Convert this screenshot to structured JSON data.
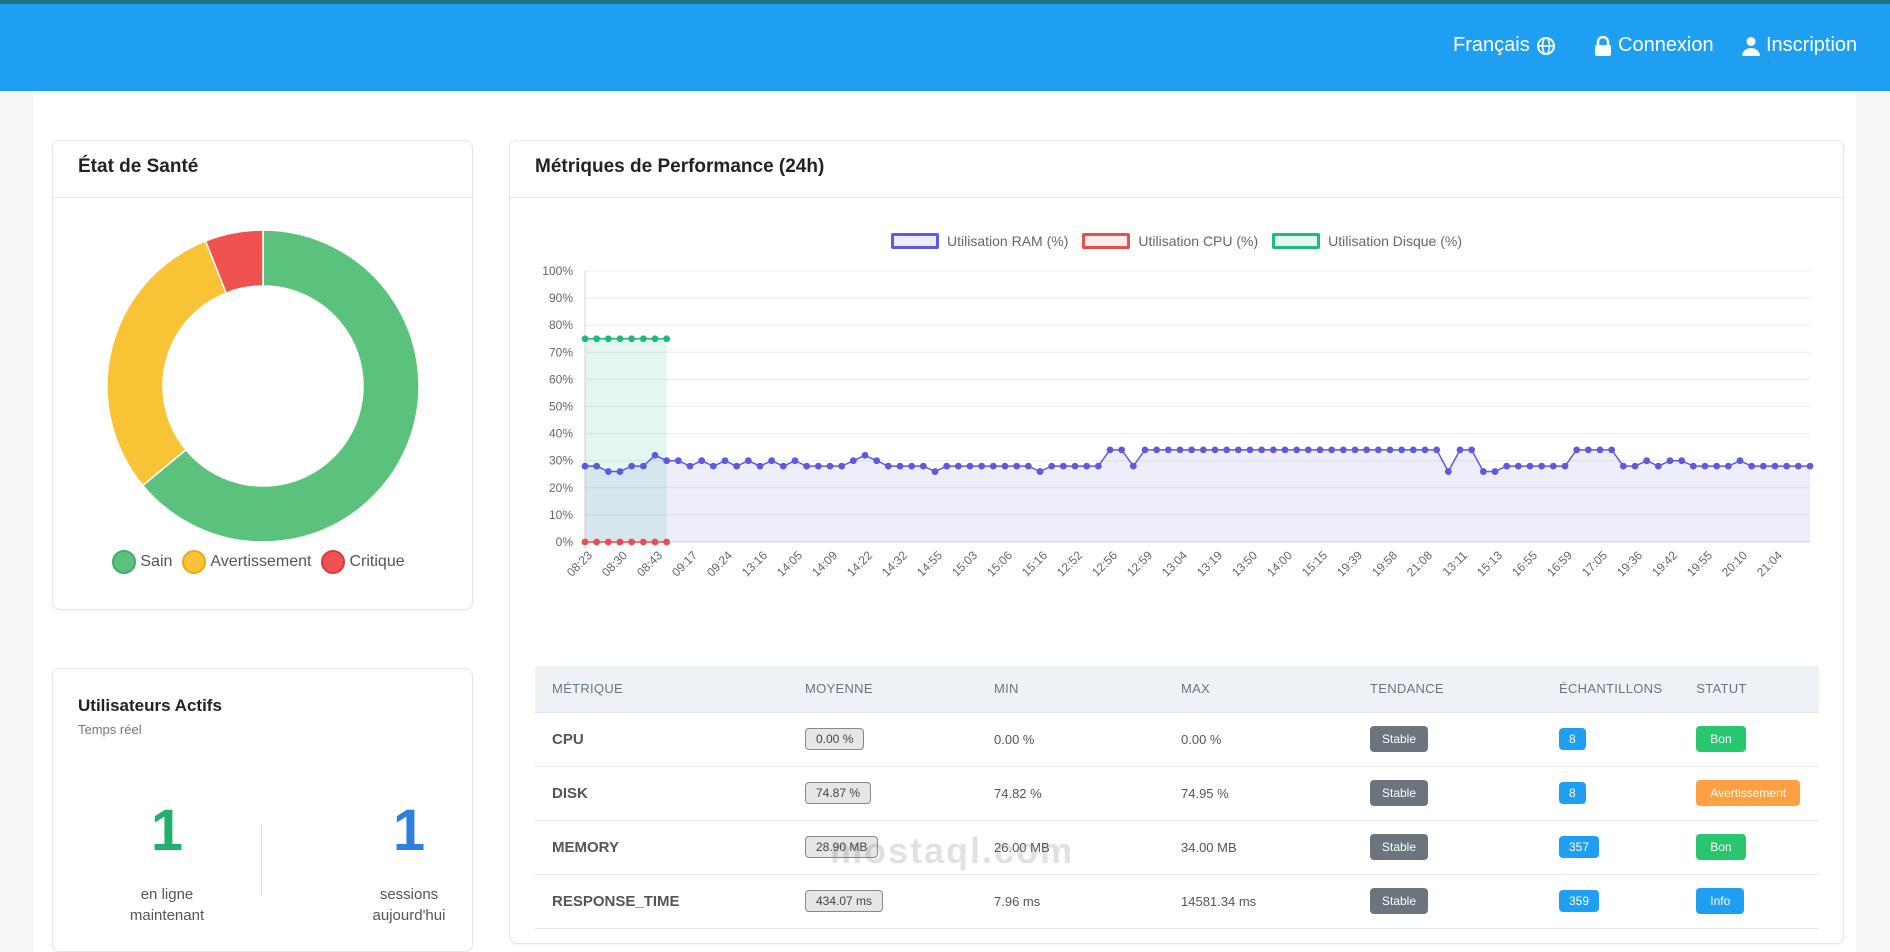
{
  "nav": {
    "language": "Français",
    "login": "Connexion",
    "register": "Inscription"
  },
  "health": {
    "title": "État de Santé",
    "legend": [
      {
        "label": "Sain",
        "color": "#5bc27e"
      },
      {
        "label": "Avertissement",
        "color": "#f9c336"
      },
      {
        "label": "Critique",
        "color": "#f05252"
      }
    ],
    "slices": [
      {
        "label": "Sain",
        "value": 64,
        "color": "#5bc27e"
      },
      {
        "label": "Avertissement",
        "value": 30,
        "color": "#f9c336"
      },
      {
        "label": "Critique",
        "value": 6,
        "color": "#f05252"
      }
    ]
  },
  "users": {
    "title": "Utilisateurs Actifs",
    "subtitle": "Temps réel",
    "online_value": "1",
    "online_label": "en ligne maintenant",
    "sessions_value": "1",
    "sessions_label": "sessions aujourd'hui"
  },
  "perf": {
    "title": "Métriques de Performance (24h)"
  },
  "chart_data": {
    "type": "line",
    "title": "",
    "xlabel": "",
    "ylabel": "",
    "ylim": [
      0,
      100
    ],
    "ytick_labels": [
      "0%",
      "10%",
      "20%",
      "30%",
      "40%",
      "50%",
      "60%",
      "70%",
      "80%",
      "90%",
      "100%"
    ],
    "grid": true,
    "legend_position": "top",
    "x_tick_labels": [
      "08:23",
      "08:30",
      "08:43",
      "09:17",
      "09:24",
      "13:16",
      "14:05",
      "14:09",
      "14:22",
      "14:32",
      "14:55",
      "15:03",
      "15:06",
      "15:16",
      "12:52",
      "12:56",
      "12:59",
      "13:04",
      "13:19",
      "13:50",
      "14:00",
      "15:15",
      "19:39",
      "19:58",
      "21:08",
      "13:11",
      "15:13",
      "16:55",
      "16:59",
      "17:05",
      "19:36",
      "19:42",
      "19:55",
      "20:10",
      "21:04"
    ],
    "series": [
      {
        "name": "Utilisation RAM (%)",
        "color": "#5b5bdc",
        "fill": "rgba(91,91,220,0.10)",
        "values": [
          28,
          28,
          26,
          26,
          28,
          28,
          32,
          30,
          30,
          28,
          30,
          28,
          30,
          28,
          30,
          28,
          30,
          28,
          30,
          28,
          28,
          28,
          28,
          30,
          32,
          30,
          28,
          28,
          28,
          28,
          26,
          28,
          28,
          28,
          28,
          28,
          28,
          28,
          28,
          26,
          28,
          28,
          28,
          28,
          28,
          34,
          34,
          28,
          34,
          34,
          34,
          34,
          34,
          34,
          34,
          34,
          34,
          34,
          34,
          34,
          34,
          34,
          34,
          34,
          34,
          34,
          34,
          34,
          34,
          34,
          34,
          34,
          34,
          34,
          26,
          34,
          34,
          26,
          26,
          28,
          28,
          28,
          28,
          28,
          28,
          34,
          34,
          34,
          34,
          28,
          28,
          30,
          28,
          30,
          30,
          28,
          28,
          28,
          28,
          30,
          28,
          28,
          28,
          28,
          28,
          28
        ]
      },
      {
        "name": "Utilisation CPU (%)",
        "color": "#e94e4e",
        "fill": "rgba(233,78,78,0.10)",
        "values": [
          0,
          0,
          0,
          0,
          0,
          0,
          0,
          0
        ]
      },
      {
        "name": "Utilisation Disque (%)",
        "color": "#1fb97a",
        "fill": "rgba(31,185,122,0.12)",
        "values": [
          75,
          75,
          75,
          75,
          75,
          75,
          75,
          75
        ]
      }
    ]
  },
  "table": {
    "headers": [
      "MÉTRIQUE",
      "MOYENNE",
      "MIN",
      "MAX",
      "TENDANCE",
      "ÉCHANTILLONS",
      "STATUT"
    ],
    "rows": [
      {
        "name": "CPU",
        "avg": "0.00 %",
        "min": "0.00 %",
        "max": "0.00 %",
        "trend": "Stable",
        "samples": "8",
        "status": "Bon",
        "status_color": "#28c76f"
      },
      {
        "name": "DISK",
        "avg": "74.87 %",
        "min": "74.82 %",
        "max": "74.95 %",
        "trend": "Stable",
        "samples": "8",
        "status": "Avertissement",
        "status_color": "#ff9f43"
      },
      {
        "name": "MEMORY",
        "avg": "28.90 MB",
        "min": "26.00 MB",
        "max": "34.00 MB",
        "trend": "Stable",
        "samples": "357",
        "status": "Bon",
        "status_color": "#28c76f"
      },
      {
        "name": "RESPONSE_TIME",
        "avg": "434.07 ms",
        "min": "7.96 ms",
        "max": "14581.34 ms",
        "trend": "Stable",
        "samples": "359",
        "status": "Info",
        "status_color": "#1e9ff2"
      }
    ]
  },
  "watermark": "mostaql.com"
}
